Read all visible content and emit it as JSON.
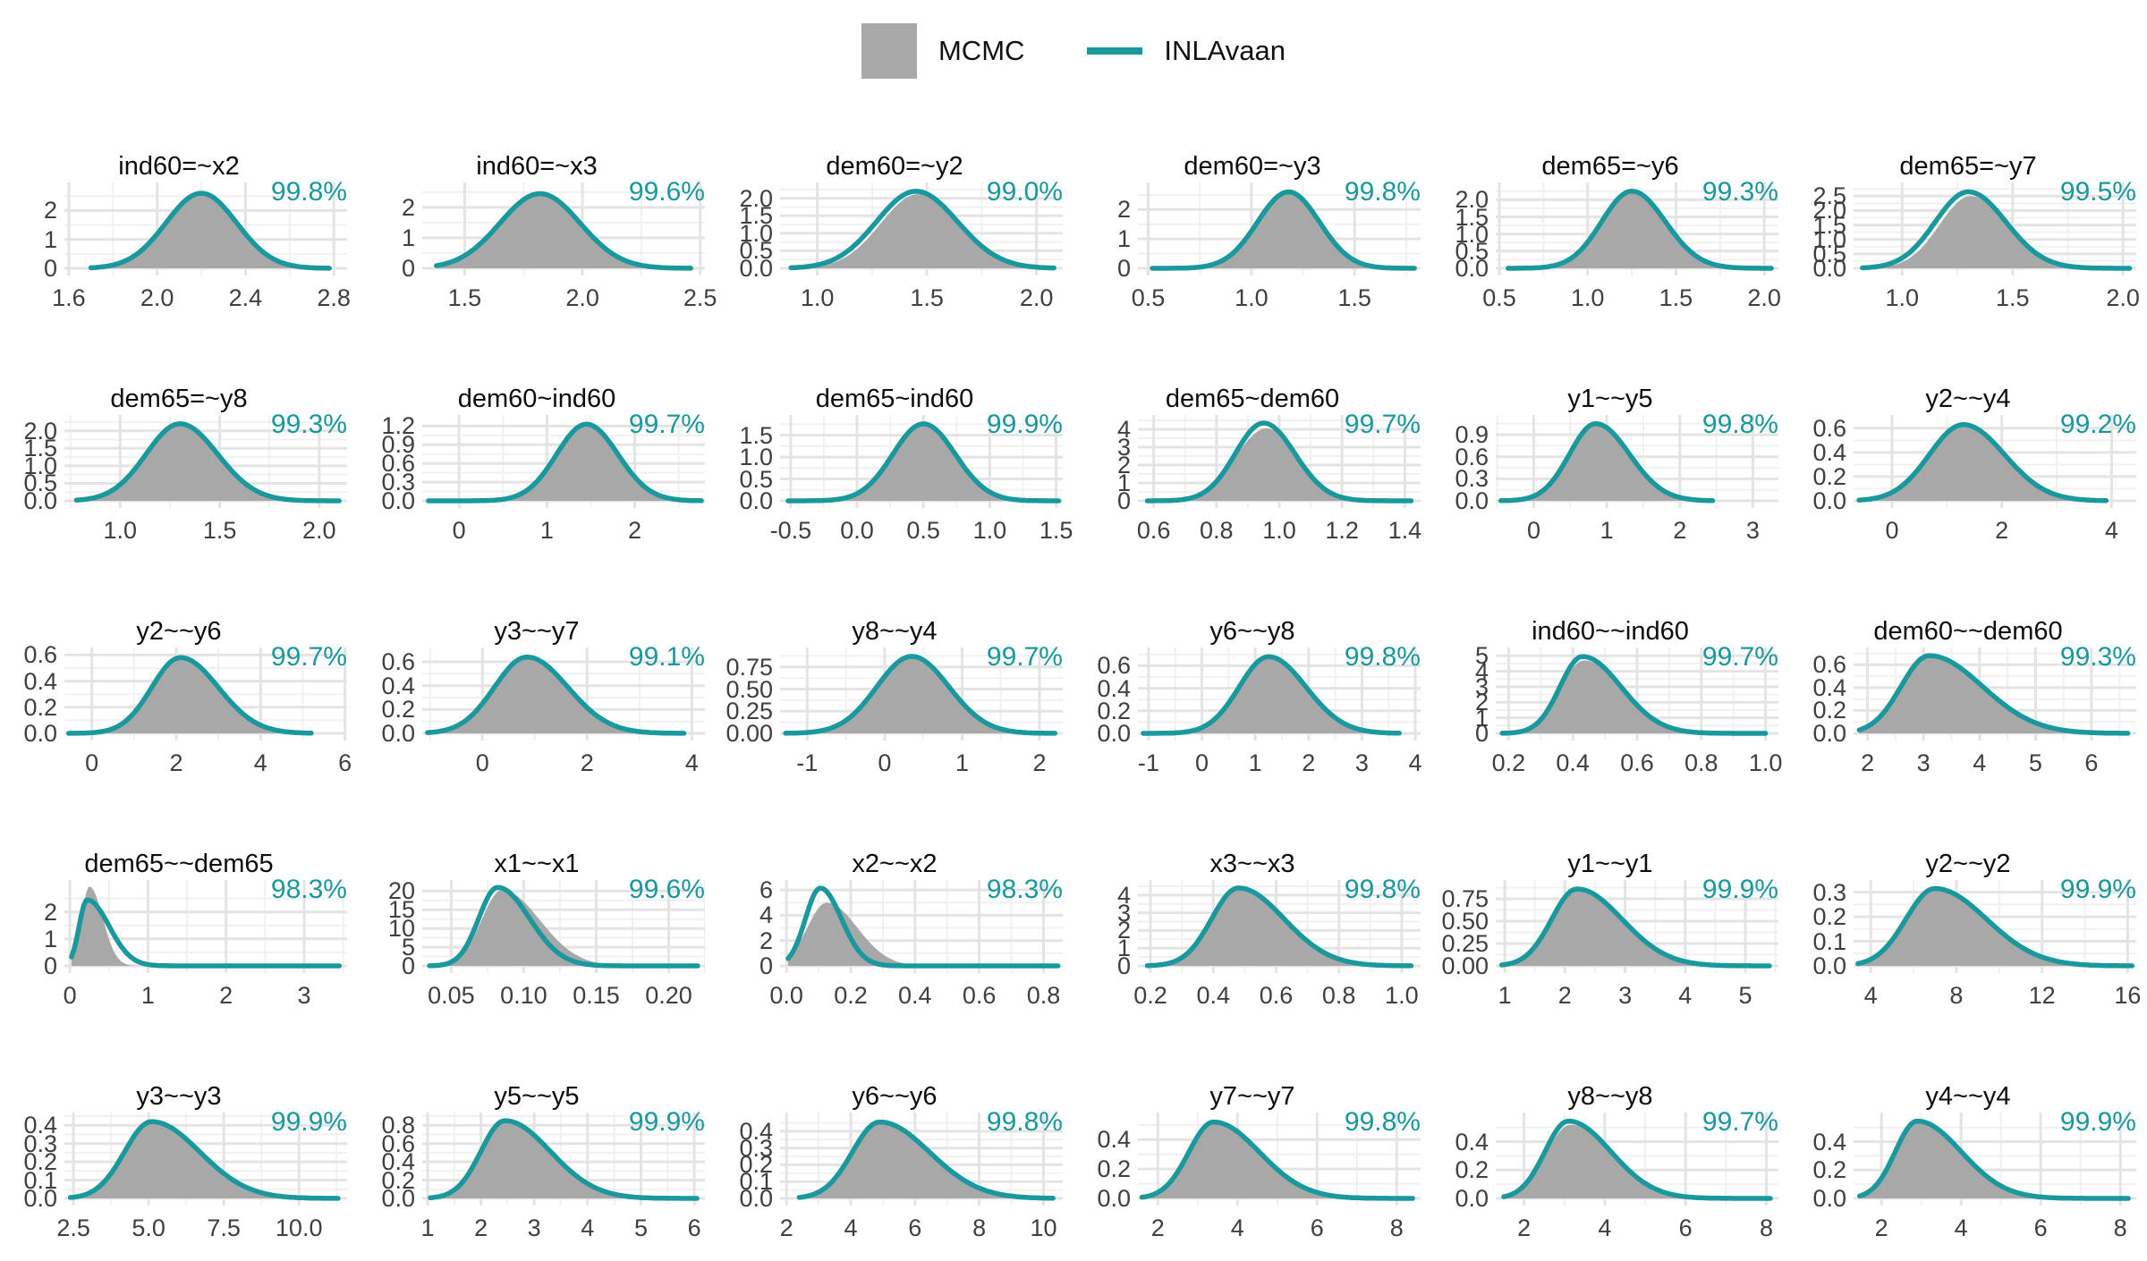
{
  "legend": {
    "mcmc_label": "MCMC",
    "inlavaan_label": "INLAvaan"
  },
  "colors": {
    "mcmc_fill": "#A8A8A8",
    "inlavaan_line": "#19989D",
    "grid_major": "#E4E4E4",
    "grid_minor": "#F1F1F1",
    "tick_text": "#3F3F3F",
    "title_text": "#0D0D0D"
  },
  "chart_data": {
    "type": "area",
    "subtype": "overlaid-density-grid",
    "rows": 5,
    "cols": 6,
    "series_names": [
      "MCMC",
      "INLAvaan"
    ],
    "legend_position": "top-center",
    "grid": "on",
    "panels": [
      {
        "title": "ind60=~x2",
        "overlap": "99.8%",
        "xlim": [
          1.58,
          2.86
        ],
        "ylim": [
          0,
          2.85
        ],
        "x_ticks": [
          "1.6",
          "2.0",
          "2.4",
          "2.8"
        ],
        "y_ticks": [
          "0",
          "1",
          "2"
        ],
        "span": [
          1.7,
          2.78
        ],
        "inla": {
          "mode": 2.2,
          "sl": 0.16,
          "sr": 0.16,
          "peak": 2.6
        },
        "mcmc": null
      },
      {
        "title": "ind60=~x3",
        "overlap": "99.6%",
        "xlim": [
          1.32,
          2.52
        ],
        "ylim": [
          0,
          2.7
        ],
        "x_ticks": [
          "1.5",
          "2.0",
          "2.5"
        ],
        "y_ticks": [
          "0",
          "1",
          "2"
        ],
        "span": [
          1.38,
          2.46
        ],
        "inla": {
          "mode": 1.82,
          "sl": 0.17,
          "sr": 0.17,
          "peak": 2.45
        },
        "mcmc": null
      },
      {
        "title": "dem60=~y2",
        "overlap": "99.0%",
        "xlim": [
          0.83,
          2.12
        ],
        "ylim": [
          0,
          2.35
        ],
        "x_ticks": [
          "1.0",
          "1.5",
          "2.0"
        ],
        "y_ticks": [
          "0.0",
          "0.5",
          "1.0",
          "1.5",
          "2.0"
        ],
        "span": [
          0.88,
          2.08
        ],
        "inla": {
          "mode": 1.45,
          "sl": 0.18,
          "sr": 0.19,
          "peak": 2.2
        },
        "mcmc": {
          "mode": 1.46,
          "sl": 0.17,
          "sr": 0.18,
          "peak": 2.12
        }
      },
      {
        "title": "dem60=~y3",
        "overlap": "99.8%",
        "xlim": [
          0.45,
          1.82
        ],
        "ylim": [
          0,
          2.8
        ],
        "x_ticks": [
          "0.5",
          "1.0",
          "1.5"
        ],
        "y_ticks": [
          "0",
          "1",
          "2"
        ],
        "span": [
          0.52,
          1.79
        ],
        "inla": {
          "mode": 1.18,
          "sl": 0.15,
          "sr": 0.15,
          "peak": 2.6
        },
        "mcmc": null
      },
      {
        "title": "dem65=~y6",
        "overlap": "99.3%",
        "xlim": [
          0.48,
          2.08
        ],
        "ylim": [
          0,
          2.4
        ],
        "x_ticks": [
          "0.5",
          "1.0",
          "1.5",
          "2.0"
        ],
        "y_ticks": [
          "0.0",
          "0.5",
          "1.0",
          "1.5",
          "2.0"
        ],
        "span": [
          0.55,
          2.04
        ],
        "inla": {
          "mode": 1.25,
          "sl": 0.17,
          "sr": 0.19,
          "peak": 2.25
        },
        "mcmc": null
      },
      {
        "title": "dem65=~y7",
        "overlap": "99.5%",
        "xlim": [
          0.78,
          2.06
        ],
        "ylim": [
          0,
          2.85
        ],
        "x_ticks": [
          "1.0",
          "1.5",
          "2.0"
        ],
        "y_ticks": [
          "0.0",
          "0.5",
          "1.0",
          "1.5",
          "2.0",
          "2.5"
        ],
        "span": [
          0.82,
          2.03
        ],
        "inla": {
          "mode": 1.3,
          "sl": 0.15,
          "sr": 0.17,
          "peak": 2.65
        },
        "mcmc": {
          "mode": 1.31,
          "sl": 0.14,
          "sr": 0.17,
          "peak": 2.5
        }
      },
      {
        "title": "dem65=~y8",
        "overlap": "99.3%",
        "xlim": [
          0.72,
          2.14
        ],
        "ylim": [
          0,
          2.35
        ],
        "x_ticks": [
          "1.0",
          "1.5",
          "2.0"
        ],
        "y_ticks": [
          "0.0",
          "0.5",
          "1.0",
          "1.5",
          "2.0"
        ],
        "span": [
          0.78,
          2.1
        ],
        "inla": {
          "mode": 1.3,
          "sl": 0.17,
          "sr": 0.19,
          "peak": 2.2
        },
        "mcmc": null
      },
      {
        "title": "dem60~ind60",
        "overlap": "99.7%",
        "xlim": [
          -0.42,
          2.8
        ],
        "ylim": [
          0,
          1.32
        ],
        "x_ticks": [
          "0",
          "1",
          "2"
        ],
        "y_ticks": [
          "0.0",
          "0.3",
          "0.6",
          "0.9",
          "1.2"
        ],
        "span": [
          -0.35,
          2.76
        ],
        "inla": {
          "mode": 1.45,
          "sl": 0.34,
          "sr": 0.36,
          "peak": 1.23
        },
        "mcmc": null
      },
      {
        "title": "dem65~ind60",
        "overlap": "99.9%",
        "xlim": [
          -0.58,
          1.55
        ],
        "ylim": [
          0,
          1.88
        ],
        "x_ticks": [
          "-0.5",
          "0.0",
          "0.5",
          "1.0",
          "1.5"
        ],
        "y_ticks": [
          "0.0",
          "0.5",
          "1.0",
          "1.5"
        ],
        "span": [
          -0.52,
          1.52
        ],
        "inla": {
          "mode": 0.5,
          "sl": 0.23,
          "sr": 0.24,
          "peak": 1.76
        },
        "mcmc": null
      },
      {
        "title": "dem65~dem60",
        "overlap": "99.7%",
        "xlim": [
          0.55,
          1.45
        ],
        "ylim": [
          0,
          4.6
        ],
        "x_ticks": [
          "0.6",
          "0.8",
          "1.0",
          "1.2",
          "1.4"
        ],
        "y_ticks": [
          "0",
          "1",
          "2",
          "3",
          "4"
        ],
        "span": [
          0.58,
          1.42
        ],
        "inla": {
          "mode": 0.95,
          "sl": 0.09,
          "sr": 0.1,
          "peak": 4.35
        },
        "mcmc": {
          "mode": 0.96,
          "sl": 0.1,
          "sr": 0.1,
          "peak": 4.05
        }
      },
      {
        "title": "y1~~y5",
        "overlap": "99.8%",
        "xlim": [
          -0.52,
          3.35
        ],
        "ylim": [
          0,
          1.12
        ],
        "x_ticks": [
          "0",
          "1",
          "2",
          "3"
        ],
        "y_ticks": [
          "0.0",
          "0.3",
          "0.6",
          "0.9"
        ],
        "span": [
          -0.45,
          2.45
        ],
        "inla": {
          "mode": 0.85,
          "sl": 0.36,
          "sr": 0.46,
          "peak": 1.05
        },
        "mcmc": null
      },
      {
        "title": "y2~~y4",
        "overlap": "99.2%",
        "xlim": [
          -0.7,
          4.45
        ],
        "ylim": [
          0,
          0.68
        ],
        "x_ticks": [
          "0",
          "2",
          "4"
        ],
        "y_ticks": [
          "0.0",
          "0.2",
          "0.4",
          "0.6"
        ],
        "span": [
          -0.6,
          3.9
        ],
        "inla": {
          "mode": 1.3,
          "sl": 0.62,
          "sr": 0.75,
          "peak": 0.63
        },
        "mcmc": null
      },
      {
        "title": "y2~~y6",
        "overlap": "99.7%",
        "xlim": [
          -0.65,
          6.05
        ],
        "ylim": [
          0,
          0.63
        ],
        "x_ticks": [
          "0",
          "2",
          "4",
          "6"
        ],
        "y_ticks": [
          "0.0",
          "0.2",
          "0.4",
          "0.6"
        ],
        "span": [
          -0.55,
          5.2
        ],
        "inla": {
          "mode": 2.1,
          "sl": 0.68,
          "sr": 0.9,
          "peak": 0.58
        },
        "mcmc": null
      },
      {
        "title": "y3~~y7",
        "overlap": "99.1%",
        "xlim": [
          -1.15,
          4.25
        ],
        "ylim": [
          0,
          0.69
        ],
        "x_ticks": [
          "0",
          "2",
          "4"
        ],
        "y_ticks": [
          "0.0",
          "0.2",
          "0.4",
          "0.6"
        ],
        "span": [
          -1.05,
          3.85
        ],
        "inla": {
          "mode": 0.85,
          "sl": 0.62,
          "sr": 0.78,
          "peak": 0.64
        },
        "mcmc": null
      },
      {
        "title": "y8~~y4",
        "overlap": "99.7%",
        "xlim": [
          -1.35,
          2.3
        ],
        "ylim": [
          0,
          0.93
        ],
        "x_ticks": [
          "-1",
          "0",
          "1",
          "2"
        ],
        "y_ticks": [
          "0.00",
          "0.25",
          "0.50",
          "0.75"
        ],
        "span": [
          -1.28,
          2.2
        ],
        "inla": {
          "mode": 0.35,
          "sl": 0.45,
          "sr": 0.48,
          "peak": 0.87
        },
        "mcmc": null
      },
      {
        "title": "y6~~y8",
        "overlap": "99.8%",
        "xlim": [
          -1.2,
          4.1
        ],
        "ylim": [
          0,
          0.73
        ],
        "x_ticks": [
          "-1",
          "0",
          "1",
          "2",
          "3",
          "4"
        ],
        "y_ticks": [
          "0.0",
          "0.2",
          "0.4",
          "0.6"
        ],
        "span": [
          -1.1,
          3.7
        ],
        "inla": {
          "mode": 1.25,
          "sl": 0.55,
          "sr": 0.7,
          "peak": 0.68
        },
        "mcmc": null
      },
      {
        "title": "ind60~~ind60",
        "overlap": "99.7%",
        "xlim": [
          0.16,
          1.04
        ],
        "ylim": [
          0,
          5.3
        ],
        "x_ticks": [
          "0.2",
          "0.4",
          "0.6",
          "0.8",
          "1.0"
        ],
        "y_ticks": [
          "0",
          "1",
          "2",
          "3",
          "4",
          "5"
        ],
        "span": [
          0.18,
          1.0
        ],
        "inla": {
          "mode": 0.43,
          "sl": 0.07,
          "sr": 0.12,
          "peak": 4.95
        },
        "mcmc": {
          "mode": 0.435,
          "sl": 0.075,
          "sr": 0.12,
          "peak": 4.7
        }
      },
      {
        "title": "dem60~~dem60",
        "overlap": "99.3%",
        "xlim": [
          1.75,
          6.8
        ],
        "ylim": [
          0,
          0.72
        ],
        "x_ticks": [
          "2",
          "3",
          "4",
          "5",
          "6"
        ],
        "y_ticks": [
          "0.0",
          "0.2",
          "0.4",
          "0.6"
        ],
        "span": [
          1.85,
          6.65
        ],
        "inla": {
          "mode": 3.1,
          "sl": 0.5,
          "sr": 0.95,
          "peak": 0.68
        },
        "mcmc": null
      },
      {
        "title": "dem65~~dem65",
        "overlap": "98.3%",
        "xlim": [
          -0.07,
          3.55
        ],
        "ylim": [
          0,
          3.05
        ],
        "x_ticks": [
          "0",
          "1",
          "2",
          "3"
        ],
        "y_ticks": [
          "0",
          "1",
          "2"
        ],
        "span": [
          0.02,
          3.45
        ],
        "inla": {
          "mode": 0.22,
          "sl": 0.1,
          "sr": 0.28,
          "peak": 2.45
        },
        "mcmc": {
          "mode": 0.25,
          "sl": 0.1,
          "sr": 0.17,
          "peak": 2.95
        }
      },
      {
        "title": "x1~~x1",
        "overlap": "99.6%",
        "xlim": [
          0.03,
          0.225
        ],
        "ylim": [
          0,
          22
        ],
        "x_ticks": [
          "0.05",
          "0.10",
          "0.15",
          "0.20"
        ],
        "y_ticks": [
          "0",
          "5",
          "10",
          "15",
          "20"
        ],
        "span": [
          0.035,
          0.22
        ],
        "inla": {
          "mode": 0.082,
          "sl": 0.013,
          "sr": 0.022,
          "peak": 21
        },
        "mcmc": {
          "mode": 0.085,
          "sl": 0.014,
          "sr": 0.026,
          "peak": 20.3
        }
      },
      {
        "title": "x2~~x2",
        "overlap": "98.3%",
        "xlim": [
          -0.02,
          0.86
        ],
        "ylim": [
          0,
          6.5
        ],
        "x_ticks": [
          "0.0",
          "0.2",
          "0.4",
          "0.6",
          "0.8"
        ],
        "y_ticks": [
          "0",
          "2",
          "4",
          "6"
        ],
        "span": [
          0.005,
          0.845
        ],
        "inla": {
          "mode": 0.105,
          "sl": 0.046,
          "sr": 0.066,
          "peak": 6.15
        },
        "mcmc": {
          "mode": 0.125,
          "sl": 0.06,
          "sr": 0.095,
          "peak": 5.0
        }
      },
      {
        "title": "x3~~x3",
        "overlap": "99.8%",
        "xlim": [
          0.16,
          1.06
        ],
        "ylim": [
          0,
          4.65
        ],
        "x_ticks": [
          "0.2",
          "0.4",
          "0.6",
          "0.8",
          "1.0"
        ],
        "y_ticks": [
          "0",
          "1",
          "2",
          "3",
          "4"
        ],
        "span": [
          0.19,
          1.03
        ],
        "inla": {
          "mode": 0.48,
          "sl": 0.085,
          "sr": 0.145,
          "peak": 4.4
        },
        "mcmc": null
      },
      {
        "title": "y1~~y1",
        "overlap": "99.9%",
        "xlim": [
          0.85,
          5.55
        ],
        "ylim": [
          0,
          0.92
        ],
        "x_ticks": [
          "1",
          "2",
          "3",
          "4",
          "5"
        ],
        "y_ticks": [
          "0.00",
          "0.25",
          "0.50",
          "0.75"
        ],
        "span": [
          0.95,
          5.4
        ],
        "inla": {
          "mode": 2.2,
          "sl": 0.42,
          "sr": 0.75,
          "peak": 0.86
        },
        "mcmc": null
      },
      {
        "title": "y2~~y2",
        "overlap": "99.9%",
        "xlim": [
          3.2,
          16.4
        ],
        "ylim": [
          0,
          0.335
        ],
        "x_ticks": [
          "4",
          "8",
          "12",
          "16"
        ],
        "y_ticks": [
          "0.0",
          "0.1",
          "0.2",
          "0.3"
        ],
        "span": [
          3.4,
          16.2
        ],
        "inla": {
          "mode": 7.0,
          "sl": 1.35,
          "sr": 2.4,
          "peak": 0.315
        },
        "mcmc": null
      },
      {
        "title": "y3~~y3",
        "overlap": "99.9%",
        "xlim": [
          2.2,
          11.6
        ],
        "ylim": [
          0,
          0.45
        ],
        "x_ticks": [
          "2.5",
          "5.0",
          "7.5",
          "10.0"
        ],
        "y_ticks": [
          "0.0",
          "0.1",
          "0.2",
          "0.3",
          "0.4"
        ],
        "span": [
          2.4,
          11.3
        ],
        "inla": {
          "mode": 5.1,
          "sl": 0.9,
          "sr": 1.6,
          "peak": 0.42
        },
        "mcmc": null
      },
      {
        "title": "y5~~y5",
        "overlap": "99.9%",
        "xlim": [
          0.9,
          6.2
        ],
        "ylim": [
          0,
          0.9
        ],
        "x_ticks": [
          "1",
          "2",
          "3",
          "4",
          "5",
          "6"
        ],
        "y_ticks": [
          "0.0",
          "0.2",
          "0.4",
          "0.6",
          "0.8"
        ],
        "span": [
          1.05,
          6.05
        ],
        "inla": {
          "mode": 2.45,
          "sl": 0.45,
          "sr": 0.85,
          "peak": 0.85
        },
        "mcmc": null
      },
      {
        "title": "y6~~y6",
        "overlap": "99.8%",
        "xlim": [
          1.8,
          10.6
        ],
        "ylim": [
          0,
          0.49
        ],
        "x_ticks": [
          "2",
          "4",
          "6",
          "8",
          "10"
        ],
        "y_ticks": [
          "0.0",
          "0.1",
          "0.2",
          "0.3",
          "0.4"
        ],
        "span": [
          2.4,
          10.3
        ],
        "inla": {
          "mode": 4.9,
          "sl": 0.85,
          "sr": 1.55,
          "peak": 0.455
        },
        "mcmc": null
      },
      {
        "title": "y7~~y7",
        "overlap": "99.8%",
        "xlim": [
          1.5,
          8.6
        ],
        "ylim": [
          0,
          0.56
        ],
        "x_ticks": [
          "2",
          "4",
          "6",
          "8"
        ],
        "y_ticks": [
          "0.0",
          "0.2",
          "0.4"
        ],
        "span": [
          1.6,
          8.4
        ],
        "inla": {
          "mode": 3.4,
          "sl": 0.62,
          "sr": 1.15,
          "peak": 0.52
        },
        "mcmc": null
      },
      {
        "title": "y8~~y8",
        "overlap": "99.7%",
        "xlim": [
          1.3,
          8.3
        ],
        "ylim": [
          0,
          0.58
        ],
        "x_ticks": [
          "2",
          "4",
          "6",
          "8"
        ],
        "y_ticks": [
          "0.0",
          "0.2",
          "0.4"
        ],
        "span": [
          1.5,
          8.1
        ],
        "inla": {
          "mode": 3.1,
          "sl": 0.58,
          "sr": 1.05,
          "peak": 0.545
        },
        "mcmc": {
          "mode": 3.15,
          "sl": 0.6,
          "sr": 1.0,
          "peak": 0.52
        }
      },
      {
        "title": "y4~~y4",
        "overlap": "99.9%",
        "xlim": [
          1.3,
          8.4
        ],
        "ylim": [
          0,
          0.58
        ],
        "x_ticks": [
          "2",
          "4",
          "6",
          "8"
        ],
        "y_ticks": [
          "0.0",
          "0.2",
          "0.4"
        ],
        "span": [
          1.45,
          8.2
        ],
        "inla": {
          "mode": 2.9,
          "sl": 0.55,
          "sr": 1.1,
          "peak": 0.545
        },
        "mcmc": null
      }
    ]
  }
}
